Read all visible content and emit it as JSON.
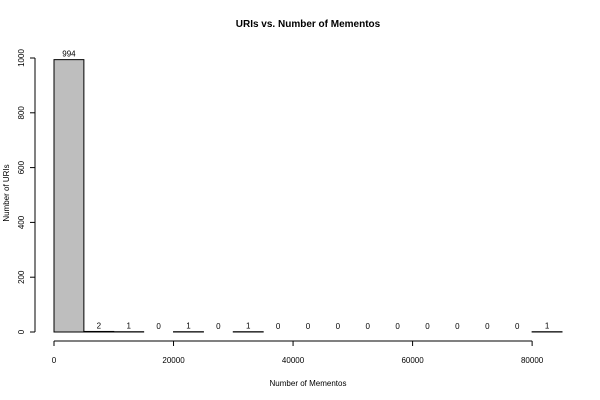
{
  "chart_data": {
    "type": "bar",
    "title": "URIs vs. Number of Mementos",
    "xlabel": "Number of Mementos",
    "ylabel": "Number of URIs",
    "bin_width": 5000,
    "bin_starts": [
      0,
      5000,
      10000,
      15000,
      20000,
      25000,
      30000,
      35000,
      40000,
      45000,
      50000,
      55000,
      60000,
      65000,
      70000,
      75000,
      80000
    ],
    "values": [
      994,
      2,
      1,
      0,
      1,
      0,
      1,
      0,
      0,
      0,
      0,
      0,
      0,
      0,
      0,
      0,
      1
    ],
    "value_labels": [
      "994",
      "2",
      "1",
      "0",
      "1",
      "0",
      "1",
      "0",
      "0",
      "0",
      "0",
      "0",
      "0",
      "0",
      "0",
      "0",
      "1"
    ],
    "xlim": [
      0,
      85000
    ],
    "ylim": [
      0,
      1000
    ],
    "x_ticks": [
      0,
      20000,
      40000,
      60000,
      80000
    ],
    "x_tick_labels": [
      "0",
      "20000",
      "40000",
      "60000",
      "80000"
    ],
    "y_ticks": [
      0,
      200,
      400,
      600,
      800,
      1000
    ],
    "y_tick_labels": [
      "0",
      "200",
      "400",
      "600",
      "800",
      "1000"
    ],
    "bar_color": "#bebebe",
    "grid": false,
    "legend": "none"
  }
}
